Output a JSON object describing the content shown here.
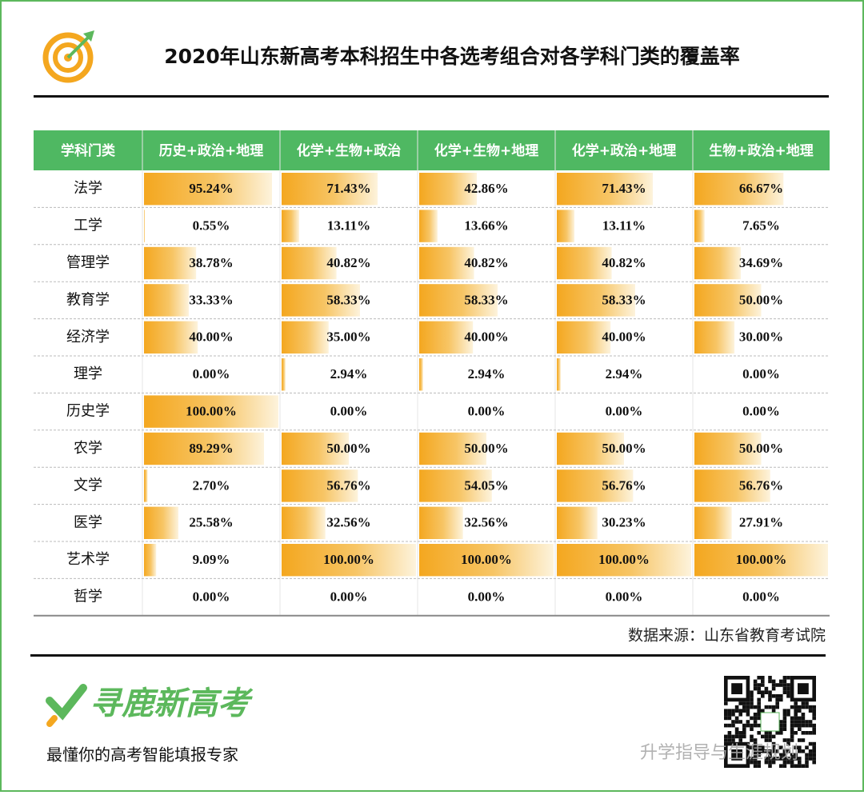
{
  "header": {
    "title": "2020年山东新高考本科招生中各选考组合对各学科门类的覆盖率"
  },
  "table": {
    "columns": [
      "学科门类",
      "历史+政治+地理",
      "化学+生物+政治",
      "化学+生物+地理",
      "化学+政治+地理",
      "生物+政治+地理"
    ],
    "rows": [
      [
        "法学",
        "95.24%",
        "71.43%",
        "42.86%",
        "71.43%",
        "66.67%"
      ],
      [
        "工学",
        "0.55%",
        "13.11%",
        "13.66%",
        "13.11%",
        "7.65%"
      ],
      [
        "管理学",
        "38.78%",
        "40.82%",
        "40.82%",
        "40.82%",
        "34.69%"
      ],
      [
        "教育学",
        "33.33%",
        "58.33%",
        "58.33%",
        "58.33%",
        "50.00%"
      ],
      [
        "经济学",
        "40.00%",
        "35.00%",
        "40.00%",
        "40.00%",
        "30.00%"
      ],
      [
        "理学",
        "0.00%",
        "2.94%",
        "2.94%",
        "2.94%",
        "0.00%"
      ],
      [
        "历史学",
        "100.00%",
        "0.00%",
        "0.00%",
        "0.00%",
        "0.00%"
      ],
      [
        "农学",
        "89.29%",
        "50.00%",
        "50.00%",
        "50.00%",
        "50.00%"
      ],
      [
        "文学",
        "2.70%",
        "56.76%",
        "54.05%",
        "56.76%",
        "56.76%"
      ],
      [
        "医学",
        "25.58%",
        "32.56%",
        "32.56%",
        "30.23%",
        "27.91%"
      ],
      [
        "艺术学",
        "9.09%",
        "100.00%",
        "100.00%",
        "100.00%",
        "100.00%"
      ],
      [
        "哲学",
        "0.00%",
        "0.00%",
        "0.00%",
        "0.00%",
        "0.00%"
      ]
    ],
    "source": "数据来源：山东省教育考试院"
  },
  "footer": {
    "brand": "寻鹿新高考",
    "slogan": "最懂你的高考智能填报专家",
    "watermark": "升学指导与生涯规划"
  }
}
